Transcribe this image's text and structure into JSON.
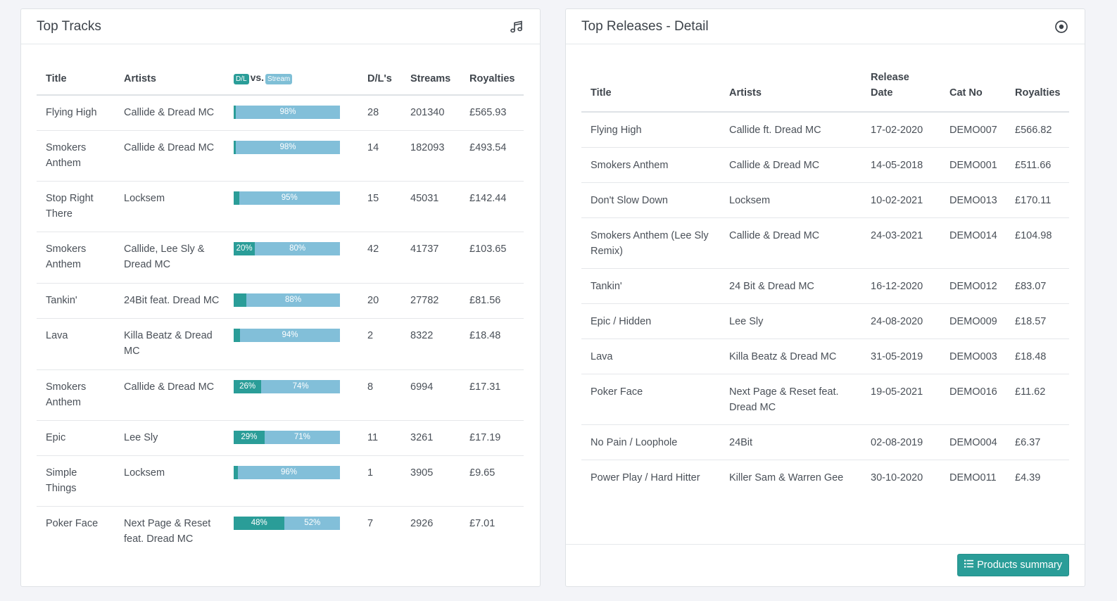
{
  "tracks": {
    "title": "Top Tracks",
    "icon": "music-note-icon",
    "headers": {
      "title": "Title",
      "artists": "Artists",
      "dl_pill": "D/L",
      "vs": "vs.",
      "stream_pill": "Stream",
      "dls": "D/L's",
      "streams": "Streams",
      "royalties": "Royalties"
    },
    "rows": [
      {
        "title": "Flying High",
        "artists": "Callide & Dread MC",
        "dl_pct": 2,
        "dl_label": "",
        "stream_label": "98%",
        "dls": "28",
        "streams": "201340",
        "royalties": "£565.93"
      },
      {
        "title": "Smokers Anthem",
        "artists": "Callide & Dread MC",
        "dl_pct": 2,
        "dl_label": "",
        "stream_label": "98%",
        "dls": "14",
        "streams": "182093",
        "royalties": "£493.54"
      },
      {
        "title": "Stop Right There",
        "artists": "Locksem",
        "dl_pct": 5,
        "dl_label": "",
        "stream_label": "95%",
        "dls": "15",
        "streams": "45031",
        "royalties": "£142.44"
      },
      {
        "title": "Smokers Anthem",
        "artists": "Callide, Lee Sly & Dread MC",
        "dl_pct": 20,
        "dl_label": "20%",
        "stream_label": "80%",
        "dls": "42",
        "streams": "41737",
        "royalties": "£103.65"
      },
      {
        "title": "Tankin'",
        "artists": "24Bit feat. Dread MC",
        "dl_pct": 12,
        "dl_label": "",
        "stream_label": "88%",
        "dls": "20",
        "streams": "27782",
        "royalties": "£81.56"
      },
      {
        "title": "Lava",
        "artists": "Killa Beatz & Dread MC",
        "dl_pct": 6,
        "dl_label": "",
        "stream_label": "94%",
        "dls": "2",
        "streams": "8322",
        "royalties": "£18.48"
      },
      {
        "title": "Smokers Anthem",
        "artists": "Callide & Dread MC",
        "dl_pct": 26,
        "dl_label": "26%",
        "stream_label": "74%",
        "dls": "8",
        "streams": "6994",
        "royalties": "£17.31"
      },
      {
        "title": "Epic",
        "artists": "Lee Sly",
        "dl_pct": 29,
        "dl_label": "29%",
        "stream_label": "71%",
        "dls": "11",
        "streams": "3261",
        "royalties": "£17.19"
      },
      {
        "title": "Simple Things",
        "artists": "Locksem",
        "dl_pct": 4,
        "dl_label": "",
        "stream_label": "96%",
        "dls": "1",
        "streams": "3905",
        "royalties": "£9.65"
      },
      {
        "title": "Poker Face",
        "artists": "Next Page & Reset feat. Dread MC",
        "dl_pct": 48,
        "dl_label": "48%",
        "stream_label": "52%",
        "dls": "7",
        "streams": "2926",
        "royalties": "£7.01"
      }
    ]
  },
  "releases": {
    "title": "Top Releases - Detail",
    "icon": "disc-icon",
    "headers": {
      "title": "Title",
      "artists": "Artists",
      "release_date": "Release Date",
      "cat_no": "Cat No",
      "royalties": "Royalties"
    },
    "rows": [
      {
        "title": "Flying High",
        "artists": "Callide ft. Dread MC",
        "date": "17-02-2020",
        "cat": "DEMO007",
        "royalties": "£566.82"
      },
      {
        "title": "Smokers Anthem",
        "artists": "Callide & Dread MC",
        "date": "14-05-2018",
        "cat": "DEMO001",
        "royalties": "£511.66"
      },
      {
        "title": "Don't Slow Down",
        "artists": "Locksem",
        "date": "10-02-2021",
        "cat": "DEMO013",
        "royalties": "£170.11"
      },
      {
        "title": "Smokers Anthem (Lee Sly Remix)",
        "artists": "Callide & Dread MC",
        "date": "24-03-2021",
        "cat": "DEMO014",
        "royalties": "£104.98"
      },
      {
        "title": "Tankin'",
        "artists": "24 Bit & Dread MC",
        "date": "16-12-2020",
        "cat": "DEMO012",
        "royalties": "£83.07"
      },
      {
        "title": "Epic / Hidden",
        "artists": "Lee Sly",
        "date": "24-08-2020",
        "cat": "DEMO009",
        "royalties": "£18.57"
      },
      {
        "title": "Lava",
        "artists": "Killa Beatz & Dread MC",
        "date": "31-05-2019",
        "cat": "DEMO003",
        "royalties": "£18.48"
      },
      {
        "title": "Poker Face",
        "artists": "Next Page & Reset feat. Dread MC",
        "date": "19-05-2021",
        "cat": "DEMO016",
        "royalties": "£11.62"
      },
      {
        "title": "No Pain / Loophole",
        "artists": "24Bit",
        "date": "02-08-2019",
        "cat": "DEMO004",
        "royalties": "£6.37"
      },
      {
        "title": "Power Play / Hard Hitter",
        "artists": "Killer Sam & Warren Gee",
        "date": "30-10-2020",
        "cat": "DEMO011",
        "royalties": "£4.39"
      }
    ],
    "button_label": "Products summary",
    "button_icon": "list-icon"
  },
  "colors": {
    "accent": "#2a9d98",
    "stream": "#82bfd9"
  }
}
